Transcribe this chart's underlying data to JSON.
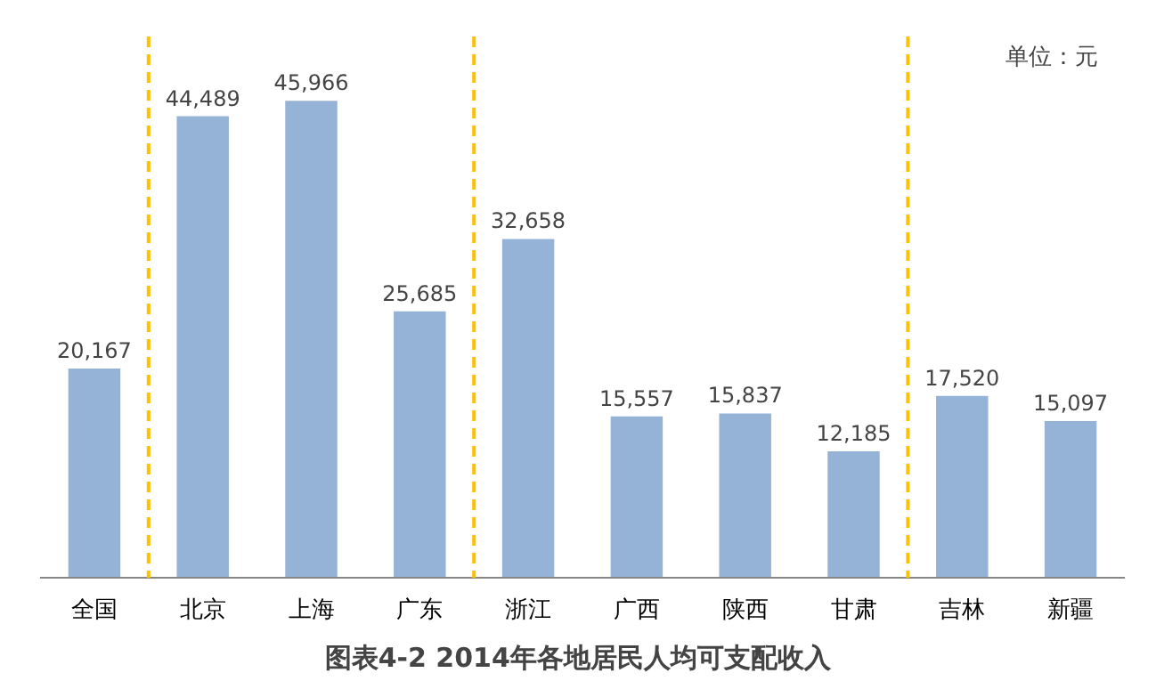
{
  "chart_data": {
    "type": "bar",
    "title": "图表4-2  2014年各地居民人均可支配收入",
    "categories": [
      "全国",
      "北京",
      "上海",
      "广东",
      "浙江",
      "广西",
      "陕西",
      "甘肃",
      "吉林",
      "新疆"
    ],
    "values": [
      20167,
      44489,
      45966,
      25685,
      32658,
      15557,
      15837,
      12185,
      17520,
      15097
    ],
    "color": "#95b3d7",
    "value_labels": [
      "20,167",
      "44,489",
      "45,966",
      "25,685",
      "32,658",
      "15,557",
      "15,837",
      "12,185",
      "17,520",
      "15,097"
    ],
    "annotations": [
      "单位：元"
    ]
  }
}
